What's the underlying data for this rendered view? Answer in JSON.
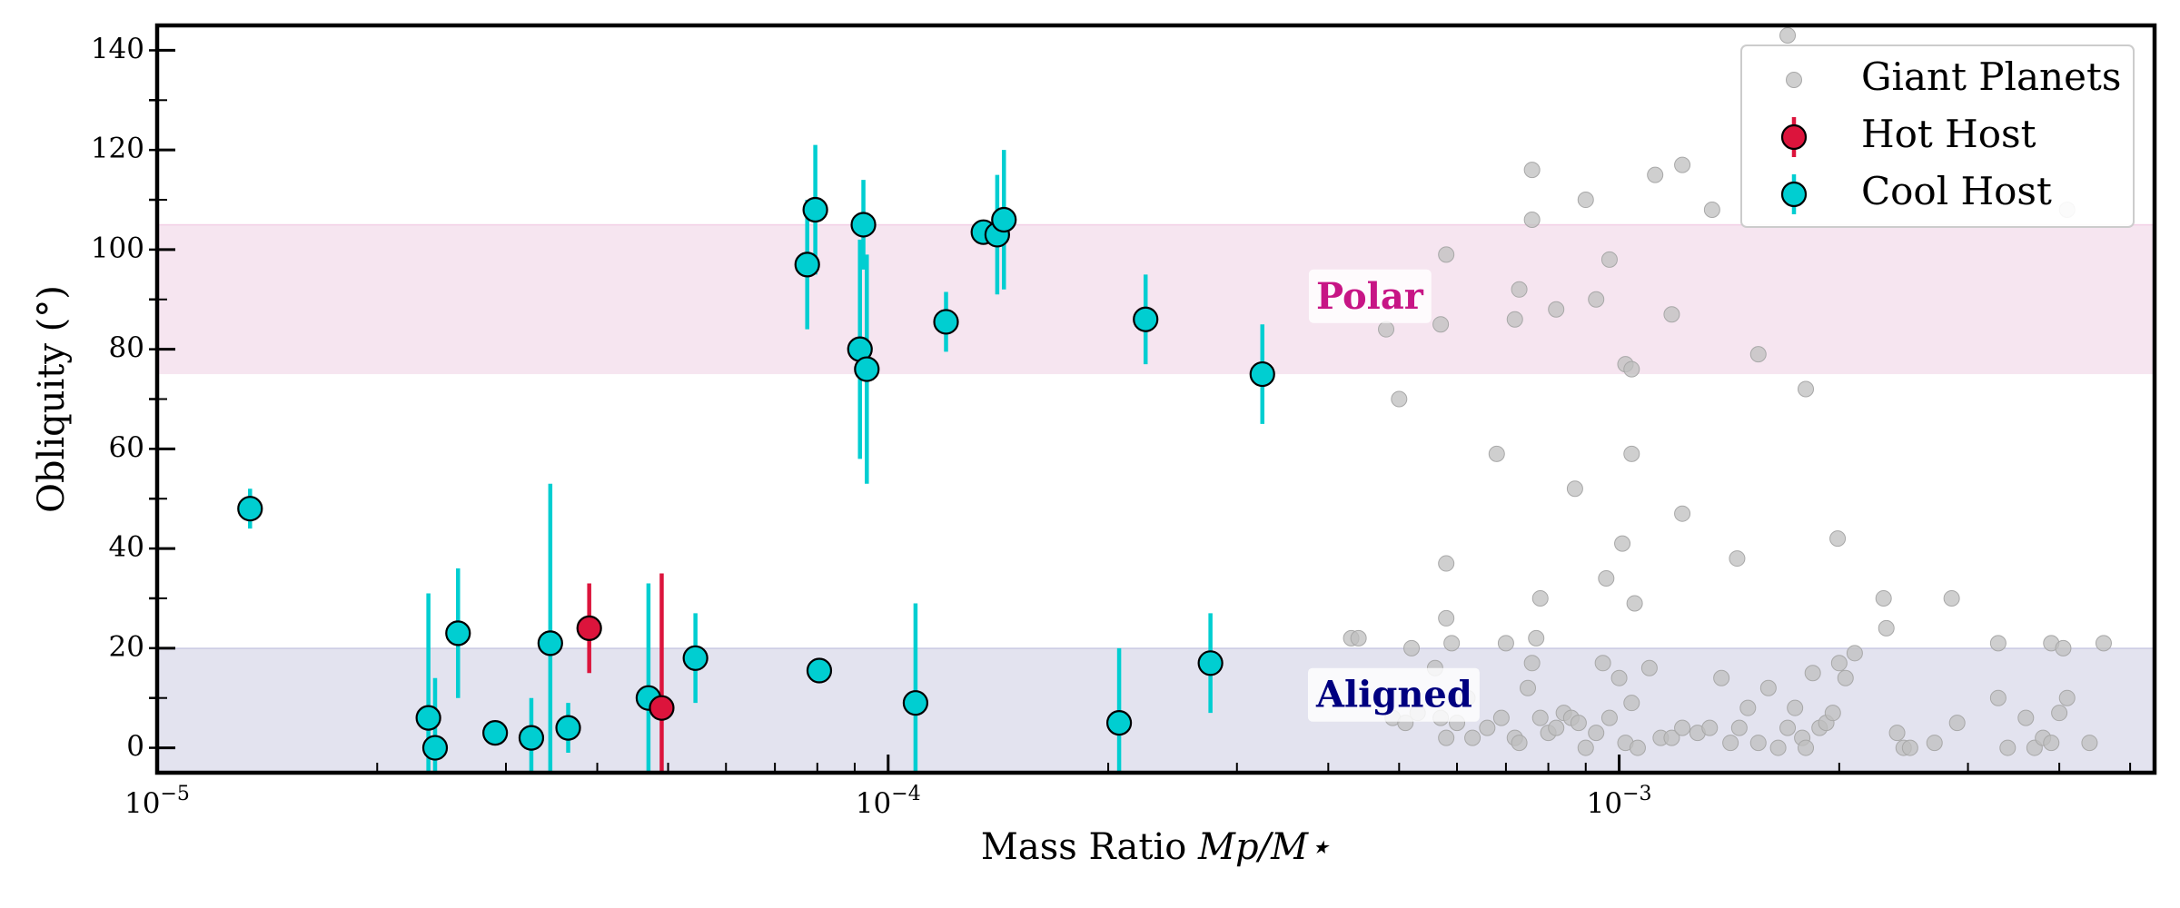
{
  "chart_data": {
    "type": "scatter",
    "xlabel": "Mass Ratio",
    "xlabel_math": "Mp/M⋆",
    "ylabel": "Obliquity (°)",
    "xscale": "log",
    "xlim": [
      1e-05,
      0.0054
    ],
    "ylim": [
      -5,
      145
    ],
    "x_ticks": [
      {
        "value": 1e-05,
        "base": "10",
        "exp": "−5"
      },
      {
        "value": 0.0001,
        "base": "10",
        "exp": "−4"
      },
      {
        "value": 0.001,
        "base": "10",
        "exp": "−3"
      }
    ],
    "y_ticks": [
      0,
      20,
      40,
      60,
      80,
      100,
      120,
      140
    ],
    "bands": [
      {
        "name": "Polar",
        "ymin": 75,
        "ymax": 105,
        "color": "#f6e5f0",
        "label_color": "#c71585",
        "label_x": 0.000385,
        "label_y": 90
      },
      {
        "name": "Aligned",
        "ymin": -5,
        "ymax": 20,
        "color": "#e3e3ef",
        "label_color": "#000080",
        "label_x": 0.000385,
        "label_y": 10
      }
    ],
    "legend": {
      "position": "top-right",
      "entries": [
        {
          "label": "Giant Planets",
          "marker": "small-grey-dot"
        },
        {
          "label": "Hot Host",
          "marker": "red-circle-errorbar"
        },
        {
          "label": "Cool Host",
          "marker": "cyan-circle-errorbar"
        }
      ]
    },
    "colors": {
      "giant": "#bfbfbf",
      "hot": "#dc143c",
      "cool": "#00ced1",
      "edge": "#000000"
    },
    "series": [
      {
        "name": "Giant Planets",
        "points": [
          [
            0.00043,
            22
          ],
          [
            0.00044,
            22
          ],
          [
            0.00049,
            6
          ],
          [
            0.00051,
            5
          ],
          [
            0.00052,
            20
          ],
          [
            0.00053,
            7
          ],
          [
            0.00056,
            16
          ],
          [
            0.00057,
            6
          ],
          [
            0.00058,
            2
          ],
          [
            0.00059,
            21
          ],
          [
            0.0006,
            5
          ],
          [
            0.00062,
            10
          ],
          [
            0.00063,
            2
          ],
          [
            0.00066,
            4
          ],
          [
            0.00069,
            6
          ],
          [
            0.0007,
            21
          ],
          [
            0.00072,
            2
          ],
          [
            0.00073,
            1
          ],
          [
            0.00075,
            12
          ],
          [
            0.00076,
            17
          ],
          [
            0.00077,
            22
          ],
          [
            0.00078,
            6
          ],
          [
            0.0008,
            3
          ],
          [
            0.00082,
            4
          ],
          [
            0.00084,
            7
          ],
          [
            0.00086,
            6
          ],
          [
            0.00088,
            5
          ],
          [
            0.0009,
            0
          ],
          [
            0.00093,
            3
          ],
          [
            0.00095,
            17
          ],
          [
            0.00097,
            6
          ],
          [
            0.001,
            14
          ],
          [
            0.00102,
            1
          ],
          [
            0.00104,
            9
          ],
          [
            0.00106,
            0
          ],
          [
            0.0011,
            16
          ],
          [
            0.00114,
            2
          ],
          [
            0.00118,
            2
          ],
          [
            0.00122,
            4
          ],
          [
            0.00128,
            3
          ],
          [
            0.00133,
            4
          ],
          [
            0.00138,
            14
          ],
          [
            0.00142,
            1
          ],
          [
            0.00146,
            4
          ],
          [
            0.0015,
            8
          ],
          [
            0.00155,
            1
          ],
          [
            0.0016,
            12
          ],
          [
            0.00165,
            0
          ],
          [
            0.0017,
            4
          ],
          [
            0.00174,
            8
          ],
          [
            0.00178,
            2
          ],
          [
            0.0018,
            0
          ],
          [
            0.00184,
            15
          ],
          [
            0.00188,
            4
          ],
          [
            0.00192,
            5
          ],
          [
            0.00196,
            7
          ],
          [
            0.002,
            17
          ],
          [
            0.00204,
            14
          ],
          [
            0.0021,
            19
          ],
          [
            0.0024,
            3
          ],
          [
            0.00245,
            0
          ],
          [
            0.0025,
            0
          ],
          [
            0.0027,
            1
          ],
          [
            0.0029,
            5
          ],
          [
            0.0033,
            10
          ],
          [
            0.0034,
            0
          ],
          [
            0.0036,
            6
          ],
          [
            0.0037,
            0
          ],
          [
            0.0038,
            2
          ],
          [
            0.0039,
            1
          ],
          [
            0.004,
            7
          ],
          [
            0.0041,
            10
          ],
          [
            0.0044,
            1
          ],
          [
            0.0033,
            21
          ],
          [
            0.0039,
            21
          ],
          [
            0.00405,
            20
          ],
          [
            0.0046,
            21
          ],
          [
            0.00232,
            24
          ],
          [
            0.0023,
            30
          ],
          [
            0.00285,
            30
          ],
          [
            0.00068,
            59
          ],
          [
            0.00104,
            59
          ],
          [
            0.00087,
            52
          ],
          [
            0.00122,
            47
          ],
          [
            0.00101,
            41
          ],
          [
            0.00199,
            42
          ],
          [
            0.00058,
            37
          ],
          [
            0.00145,
            38
          ],
          [
            0.00096,
            34
          ],
          [
            0.00105,
            29
          ],
          [
            0.00078,
            30
          ],
          [
            0.00058,
            26
          ],
          [
            0.00048,
            84
          ],
          [
            0.00057,
            85
          ],
          [
            0.0005,
            70
          ],
          [
            0.00058,
            99
          ],
          [
            0.00076,
            116
          ],
          [
            0.00076,
            106
          ],
          [
            0.0009,
            110
          ],
          [
            0.00097,
            98
          ],
          [
            0.00073,
            92
          ],
          [
            0.00082,
            88
          ],
          [
            0.00072,
            86
          ],
          [
            0.00093,
            90
          ],
          [
            0.00102,
            77
          ],
          [
            0.00104,
            76
          ],
          [
            0.00118,
            87
          ],
          [
            0.00112,
            115
          ],
          [
            0.00122,
            117
          ],
          [
            0.00155,
            79
          ],
          [
            0.0018,
            72
          ],
          [
            0.00134,
            108
          ],
          [
            0.0017,
            143
          ],
          [
            0.0041,
            108
          ]
        ]
      },
      {
        "name": "Hot Host",
        "points": [
          {
            "x": 3.9e-05,
            "y": 24,
            "err": 9
          },
          {
            "x": 4.9e-05,
            "y": 8,
            "err": 27
          }
        ]
      },
      {
        "name": "Cool Host",
        "points": [
          {
            "x": 1.34e-05,
            "y": 48,
            "err": 4
          },
          {
            "x": 2.35e-05,
            "y": 6,
            "err": 25
          },
          {
            "x": 2.4e-05,
            "y": 0,
            "err": 14
          },
          {
            "x": 2.58e-05,
            "y": 23,
            "err": 13
          },
          {
            "x": 2.9e-05,
            "y": 3,
            "err": 0
          },
          {
            "x": 3.25e-05,
            "y": 2,
            "err": 8
          },
          {
            "x": 3.45e-05,
            "y": 21,
            "err": 32
          },
          {
            "x": 3.65e-05,
            "y": 4,
            "err": 5
          },
          {
            "x": 4.7e-05,
            "y": 10,
            "err": 23
          },
          {
            "x": 5.45e-05,
            "y": 18,
            "err": 9
          },
          {
            "x": 7.75e-05,
            "y": 97,
            "err": 13
          },
          {
            "x": 7.95e-05,
            "y": 108,
            "err": 13
          },
          {
            "x": 8.05e-05,
            "y": 15.5,
            "err": 0
          },
          {
            "x": 9.15e-05,
            "y": 80,
            "err": 22
          },
          {
            "x": 9.25e-05,
            "y": 105,
            "err": 9
          },
          {
            "x": 9.35e-05,
            "y": 76,
            "err": 23
          },
          {
            "x": 0.000109,
            "y": 9,
            "err": 20
          },
          {
            "x": 0.00012,
            "y": 85.5,
            "err": 6
          },
          {
            "x": 0.000135,
            "y": 103.5,
            "err": 0
          },
          {
            "x": 0.000141,
            "y": 103,
            "err": 12
          },
          {
            "x": 0.000144,
            "y": 106,
            "err": 14
          },
          {
            "x": 0.000207,
            "y": 5,
            "err": 15
          },
          {
            "x": 0.000225,
            "y": 86,
            "err": 9
          },
          {
            "x": 0.000276,
            "y": 17,
            "err": 10
          },
          {
            "x": 0.000325,
            "y": 75,
            "err": 10
          }
        ]
      }
    ]
  }
}
